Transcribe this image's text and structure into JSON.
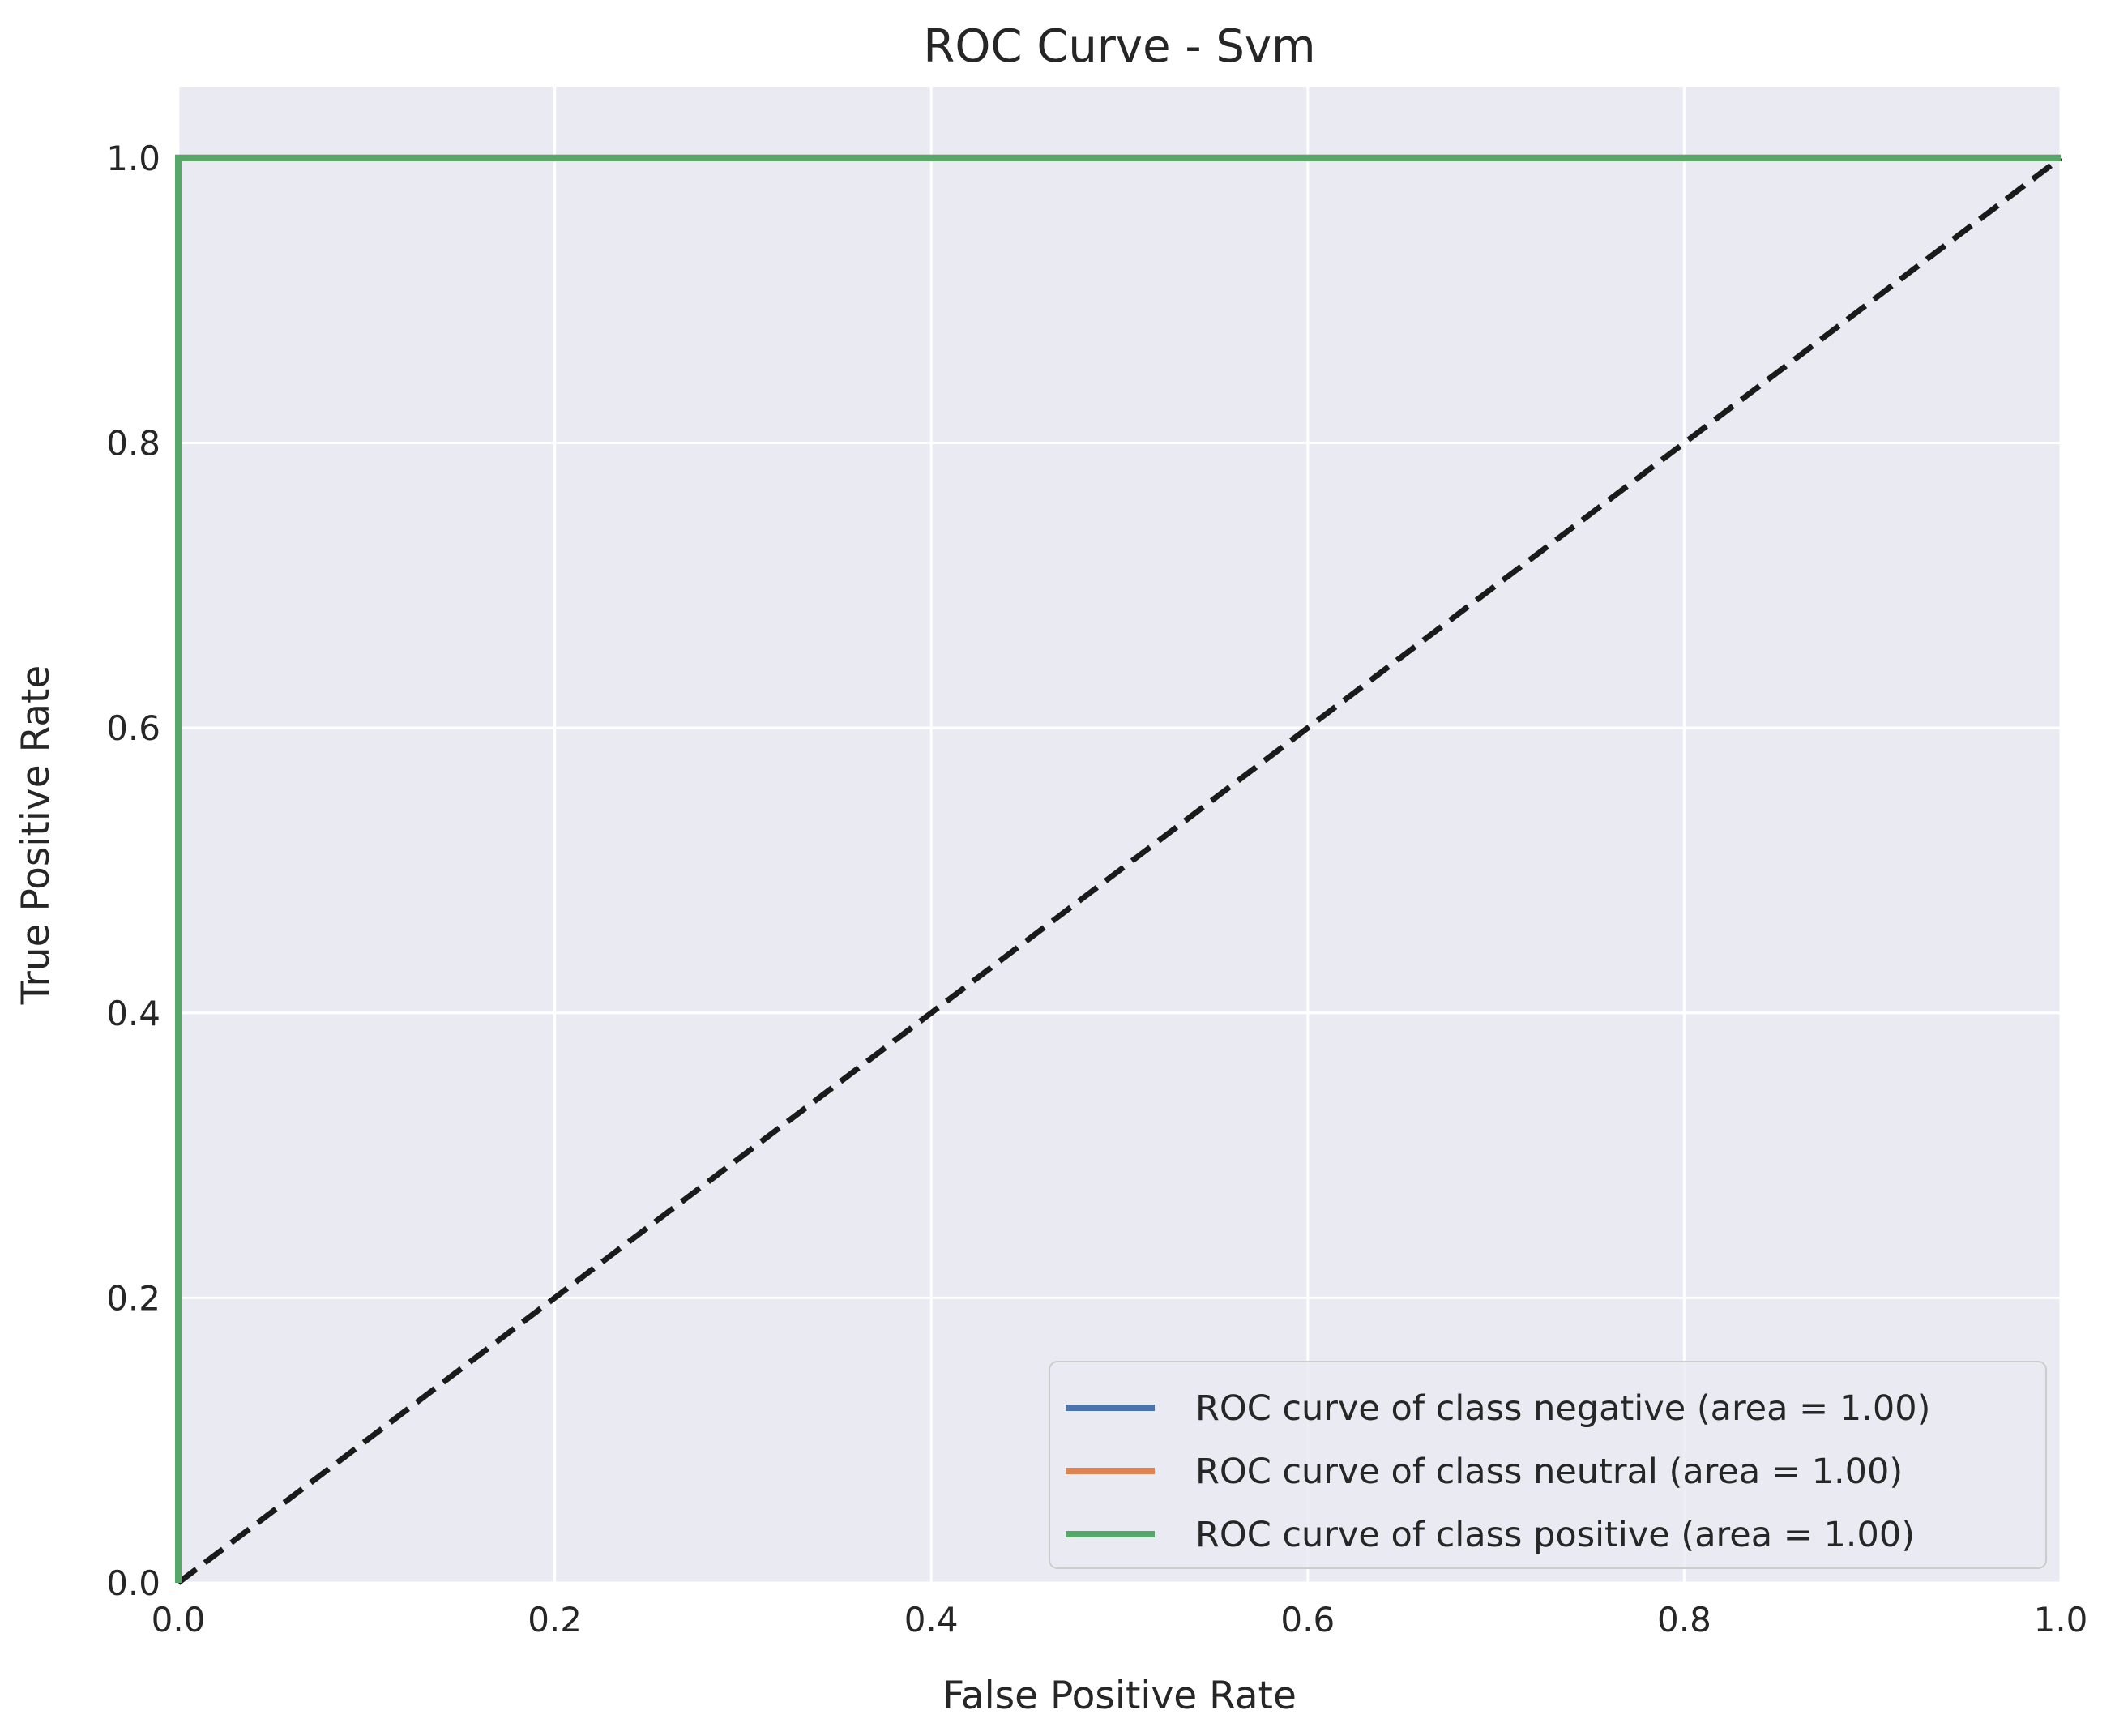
{
  "chart_data": {
    "type": "line",
    "title": "ROC Curve - Svm",
    "xlabel": "False Positive Rate",
    "ylabel": "True Positive Rate",
    "xlim": [
      0.0,
      1.0
    ],
    "ylim": [
      0.0,
      1.05
    ],
    "x_ticks": [
      "0.0",
      "0.2",
      "0.4",
      "0.6",
      "0.8",
      "1.0"
    ],
    "y_ticks": [
      "0.0",
      "0.2",
      "0.4",
      "0.6",
      "0.8",
      "1.0"
    ],
    "grid": true,
    "legend_position": "lower-right",
    "series": [
      {
        "name": "ROC curve of class negative (area = 1.00)",
        "color": "#4c72b0",
        "x": [
          0.0,
          0.0,
          1.0
        ],
        "y": [
          0.0,
          1.0,
          1.0
        ]
      },
      {
        "name": "ROC curve of class neutral (area = 1.00)",
        "color": "#dd8452",
        "x": [
          0.0,
          0.0,
          1.0
        ],
        "y": [
          0.0,
          1.0,
          1.0
        ]
      },
      {
        "name": "ROC curve of class positive (area = 1.00)",
        "color": "#55a868",
        "x": [
          0.0,
          0.0,
          1.0
        ],
        "y": [
          0.0,
          1.0,
          1.0
        ]
      }
    ],
    "reference_line": {
      "x": [
        0.0,
        1.0
      ],
      "y": [
        0.0,
        1.0
      ],
      "color": "#1a1a1a",
      "style": "dashed"
    },
    "background_color": "#eaeaf2"
  }
}
